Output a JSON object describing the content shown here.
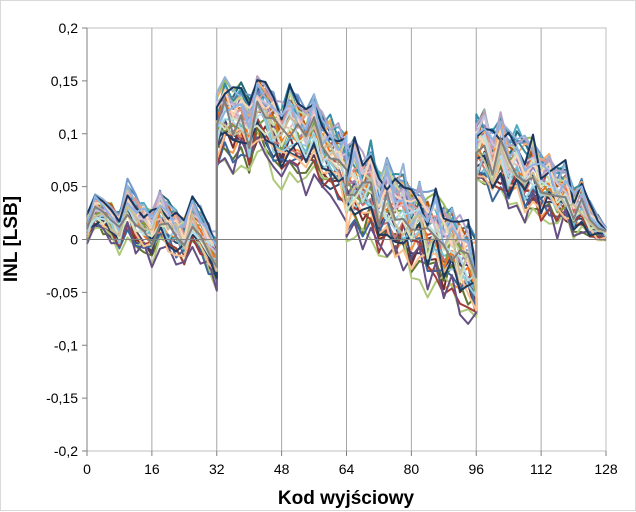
{
  "chart_data": {
    "type": "line",
    "title": "",
    "xlabel": "Kod wyjściowy",
    "ylabel": "INL [LSB]",
    "xlim": [
      0,
      128
    ],
    "ylim": [
      -0.2,
      0.2
    ],
    "x_ticks": [
      0,
      16,
      32,
      48,
      64,
      80,
      96,
      112,
      128
    ],
    "y_ticks": [
      -0.2,
      -0.15,
      -0.1,
      -0.05,
      0,
      0.05,
      0.1,
      0.15,
      0.2
    ],
    "x_tick_labels": [
      "0",
      "16",
      "32",
      "48",
      "64",
      "80",
      "96",
      "112",
      "128"
    ],
    "y_tick_labels": [
      "-0,2",
      "-0,15",
      "-0,1",
      "-0,05",
      "0",
      "0,05",
      "0,1",
      "0,15",
      "0,2"
    ],
    "grid": {
      "x": true,
      "y": false
    },
    "legend": "none",
    "series_count": 40,
    "series_colors": [
      "#4f81bd",
      "#c0504d",
      "#9bbb59",
      "#8064a2",
      "#4bacc6",
      "#f79646",
      "#2c4d75",
      "#772c2a",
      "#5f7530",
      "#4d3b62",
      "#276a7c",
      "#b65708",
      "#729aca",
      "#cd7371",
      "#afc97a",
      "#9983b5",
      "#6fbdd1",
      "#f9ab6b",
      "#3a679c",
      "#9f3b38",
      "#7f9c40",
      "#664f83",
      "#358ea6",
      "#f3741d",
      "#95b3d7",
      "#d99694",
      "#c3d69b",
      "#b3a2c7",
      "#92cddc",
      "#fac08f",
      "#1f3a5f",
      "#e6b9b8",
      "#d7e4bd",
      "#ccc1da",
      "#b7dee8",
      "#fcd5b5",
      "#17375e",
      "#8eb4e3",
      "#c4bd97",
      "#7f7f7f"
    ],
    "series_template": {
      "x": [
        0,
        2,
        4,
        6,
        8,
        10,
        12,
        14,
        16,
        18,
        20,
        22,
        24,
        26,
        28,
        30,
        32,
        32,
        34,
        36,
        38,
        40,
        42,
        44,
        46,
        48,
        50,
        52,
        54,
        56,
        58,
        60,
        62,
        64,
        64,
        66,
        68,
        70,
        72,
        74,
        76,
        78,
        80,
        82,
        84,
        86,
        88,
        90,
        92,
        94,
        96,
        96,
        98,
        100,
        102,
        104,
        106,
        108,
        110,
        112,
        114,
        116,
        118,
        120,
        122,
        124,
        126,
        128
      ],
      "mean": [
        0.01,
        0.025,
        0.02,
        0.015,
        0.005,
        0.03,
        0.015,
        0.01,
        0.0,
        0.02,
        0.01,
        0.005,
        -0.005,
        0.015,
        0.005,
        -0.01,
        -0.02,
        0.1,
        0.115,
        0.105,
        0.11,
        0.095,
        0.12,
        0.108,
        0.1,
        0.09,
        0.105,
        0.095,
        0.085,
        0.1,
        0.08,
        0.075,
        0.07,
        0.06,
        0.04,
        0.05,
        0.035,
        0.045,
        0.025,
        0.03,
        0.015,
        0.02,
        0.005,
        0.01,
        -0.005,
        0.0,
        -0.015,
        -0.01,
        -0.025,
        -0.03,
        -0.045,
        0.075,
        0.085,
        0.065,
        0.08,
        0.06,
        0.07,
        0.055,
        0.06,
        0.045,
        0.05,
        0.035,
        0.04,
        0.025,
        0.03,
        0.015,
        0.01,
        0.005
      ],
      "spread": [
        0.01,
        0.015,
        0.015,
        0.015,
        0.015,
        0.02,
        0.02,
        0.02,
        0.02,
        0.02,
        0.02,
        0.02,
        0.02,
        0.02,
        0.02,
        0.02,
        0.02,
        0.03,
        0.03,
        0.03,
        0.03,
        0.03,
        0.03,
        0.03,
        0.03,
        0.03,
        0.03,
        0.03,
        0.03,
        0.03,
        0.03,
        0.03,
        0.03,
        0.035,
        0.035,
        0.035,
        0.035,
        0.035,
        0.035,
        0.035,
        0.035,
        0.035,
        0.035,
        0.035,
        0.035,
        0.035,
        0.035,
        0.035,
        0.035,
        0.035,
        0.035,
        0.03,
        0.03,
        0.03,
        0.03,
        0.03,
        0.03,
        0.03,
        0.03,
        0.025,
        0.025,
        0.025,
        0.025,
        0.02,
        0.02,
        0.015,
        0.01,
        0.005
      ]
    }
  }
}
